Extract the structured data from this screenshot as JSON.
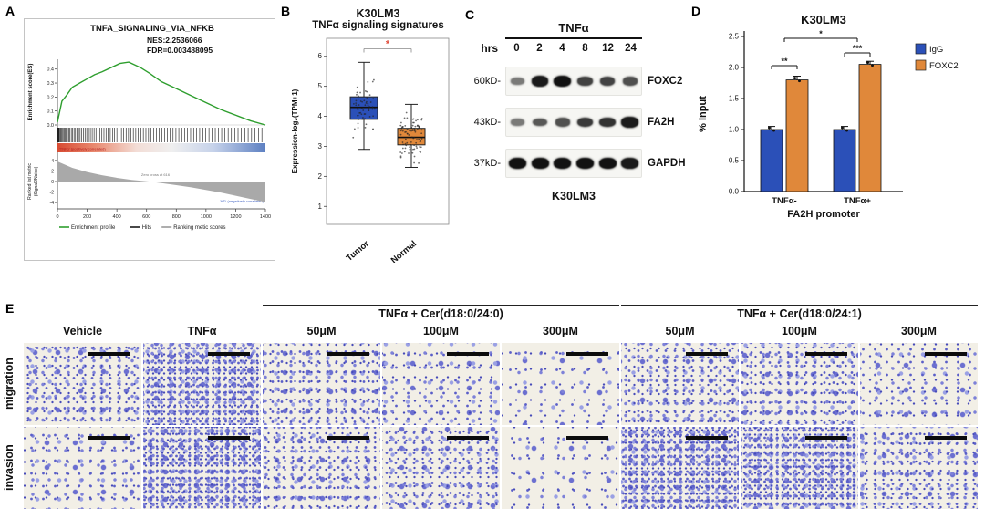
{
  "figure": {
    "bg": "#ffffff"
  },
  "panelA": {
    "label": "A",
    "title": "TNFA_SIGNALING_VIA_NFKB",
    "nes": "NES:2.2536066",
    "fdr": "FDR=0.003488095",
    "es_axis_label": "Enrichment score(ES)",
    "metric_axis_label_line1": "Ranked list metric",
    "metric_axis_label_line2": "(Signal2Noise)",
    "pos_label": "'TNFα' (positively correlated)",
    "neg_label": "'KD' (negatively correlated)",
    "zero_cross": "Zero cross at 616",
    "legend": [
      {
        "label": "Enrichment profile",
        "color": "#2e9e2e"
      },
      {
        "label": "Hits",
        "color": "#1a1a1a"
      },
      {
        "label": "Ranking metic scores",
        "color": "#9a9a9a"
      }
    ]
  },
  "panelB": {
    "label": "B",
    "title1": "K30LM3",
    "title2": "TNFα signaling signatures",
    "ylabel": "Expression-log₂(TPM+1)",
    "significance": "*"
  },
  "panelC": {
    "label": "C",
    "treatment": "TNFα",
    "hrs": "hrs",
    "lanes": [
      "0",
      "2",
      "4",
      "8",
      "12",
      "24"
    ],
    "blots": [
      {
        "marker": "60kD-",
        "protein": "FOXC2",
        "intensities": [
          0.35,
          0.95,
          1.0,
          0.7,
          0.68,
          0.62
        ]
      },
      {
        "marker": "43kD-",
        "protein": "FA2H",
        "intensities": [
          0.35,
          0.55,
          0.6,
          0.75,
          0.8,
          0.95
        ]
      },
      {
        "marker": "37kD-",
        "protein": "GAPDH",
        "intensities": [
          1,
          1,
          1,
          1,
          1,
          0.95
        ]
      }
    ],
    "cell_line": "K30LM3"
  },
  "panelD": {
    "label": "D",
    "title": "K30LM3",
    "ylabel": "% input",
    "xlabel": "FA2H promoter"
  },
  "panelE": {
    "label": "E",
    "group_headers": [
      "TNFα + Cer(d18:0/24:0)",
      "TNFα + Cer(d18:0/24:1)"
    ],
    "col_labels": [
      "Vehicle",
      "TNFα",
      "50μM",
      "100μM",
      "300μM",
      "50μM",
      "100μM",
      "300μM"
    ],
    "row_labels": [
      "migration",
      "invasion"
    ],
    "cell_density": [
      [
        "med",
        "high",
        "med",
        "medlow",
        "low",
        "med",
        "med",
        "medlow"
      ],
      [
        "medlow",
        "high",
        "med",
        "med",
        "low",
        "high",
        "high",
        "med"
      ]
    ]
  },
  "chart_data": [
    {
      "type": "line",
      "panel": "A",
      "title": "TNFA_SIGNALING_VIA_NFKB",
      "nes": 2.2536066,
      "fdr": 0.003488095,
      "xlim": [
        0,
        1400
      ],
      "x_ticks": [
        0,
        200,
        400,
        600,
        800,
        1000,
        1200,
        1400
      ],
      "es_ticks": [
        0.0,
        0.1,
        0.2,
        0.3,
        0.4
      ],
      "metric_ticks": [
        4,
        2,
        0,
        -2,
        -4
      ],
      "ylabel": "Enrichment score(ES)",
      "series": [
        {
          "name": "Enrichment profile",
          "x": [
            0,
            30,
            60,
            100,
            150,
            200,
            250,
            300,
            360,
            420,
            480,
            520,
            560,
            620,
            700,
            800,
            900,
            1000,
            1100,
            1200,
            1300,
            1400
          ],
          "y": [
            0.02,
            0.17,
            0.21,
            0.27,
            0.3,
            0.33,
            0.36,
            0.38,
            0.41,
            0.44,
            0.45,
            0.43,
            0.41,
            0.37,
            0.31,
            0.26,
            0.21,
            0.16,
            0.11,
            0.07,
            0.03,
            0.0
          ]
        },
        {
          "name": "Ranking metric scores",
          "x": [
            0,
            100,
            200,
            300,
            400,
            500,
            616,
            700,
            800,
            900,
            1000,
            1100,
            1200,
            1300,
            1400
          ],
          "y": [
            3.8,
            2.6,
            1.8,
            1.2,
            0.7,
            0.3,
            0,
            -0.3,
            -0.7,
            -1.1,
            -1.6,
            -2.1,
            -2.7,
            -3.3,
            -3.9
          ]
        }
      ]
    },
    {
      "type": "box",
      "panel": "B",
      "title": "K30LM3 TNFα signaling signatures",
      "ylabel": "Expression-log2(TPM+1)",
      "ylim": [
        0.4,
        6.6
      ],
      "y_ticks": [
        1,
        2,
        3,
        4,
        5,
        6
      ],
      "categories": [
        "Tumor",
        "Normal"
      ],
      "boxes": [
        {
          "label": "Tumor",
          "color": "#2b50b8",
          "median": 4.3,
          "q1": 3.9,
          "q3": 4.65,
          "whisker_low": 2.9,
          "whisker_high": 5.8,
          "points_mean": 4.25,
          "points_sd": 0.6,
          "n": 60
        },
        {
          "label": "Normal",
          "color": "#e0883a",
          "median": 3.3,
          "q1": 3.05,
          "q3": 3.6,
          "whisker_low": 2.3,
          "whisker_high": 4.4,
          "points_mean": 3.3,
          "points_sd": 0.5,
          "n": 90
        }
      ],
      "significance": "*"
    },
    {
      "type": "bar",
      "panel": "D",
      "title": "K30LM3",
      "categories": [
        "TNFα-",
        "TNFα+"
      ],
      "series": [
        {
          "name": "IgG",
          "color": "#2b50b8",
          "values": [
            1.0,
            1.0
          ],
          "errors": [
            0.05,
            0.05
          ]
        },
        {
          "name": "FOXC2",
          "color": "#e0883a",
          "values": [
            1.8,
            2.05
          ],
          "errors": [
            0.06,
            0.05
          ]
        }
      ],
      "ylabel": "% input",
      "xlabel": "FA2H promoter",
      "ylim": [
        0,
        2.5
      ],
      "y_ticks": [
        0.0,
        0.5,
        1.0,
        1.5,
        2.0,
        2.5
      ],
      "legend_position": "right",
      "significance": [
        {
          "pair": [
            "IgG",
            "FOXC2"
          ],
          "group": "TNFα-",
          "label": "**"
        },
        {
          "pair": [
            "IgG",
            "FOXC2"
          ],
          "group": "TNFα+",
          "label": "***"
        },
        {
          "pair": [
            "TNFα-",
            "TNFα+"
          ],
          "group": "between",
          "label": "*"
        }
      ]
    }
  ]
}
